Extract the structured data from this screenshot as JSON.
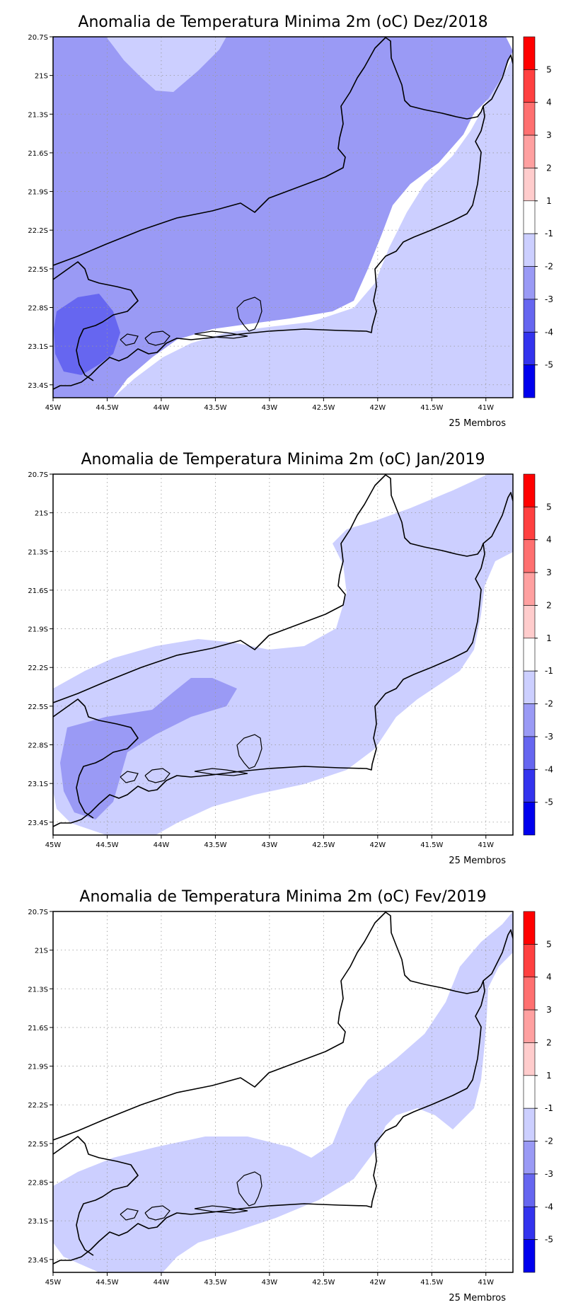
{
  "panels": [
    {
      "title": "Anomalia de Temperatura Minima 2m (oC) Dez/2018",
      "footer": "25 Membros",
      "field_level": "dez"
    },
    {
      "title": "Anomalia de Temperatura Minima 2m (oC) Jan/2019",
      "footer": "25 Membros",
      "field_level": "jan"
    },
    {
      "title": "Anomalia de Temperatura Minima 2m (oC) Fev/2019",
      "footer": "25 Membros",
      "field_level": "fev"
    }
  ],
  "map": {
    "lon_range": [
      -45.0,
      -40.75
    ],
    "lat_range": [
      -23.5,
      -20.7
    ],
    "lat_ticks": [
      "20.7S",
      "21S",
      "21.3S",
      "21.6S",
      "21.9S",
      "22.2S",
      "22.5S",
      "22.8S",
      "23.1S",
      "23.4S"
    ],
    "lat_values": [
      -20.7,
      -21.0,
      -21.3,
      -21.6,
      -21.9,
      -22.2,
      -22.5,
      -22.8,
      -23.1,
      -23.4
    ],
    "lon_ticks": [
      "45W",
      "44.5W",
      "44W",
      "43.5W",
      "43W",
      "42.5W",
      "42W",
      "41.5W",
      "41W"
    ],
    "lon_values": [
      -45.0,
      -44.5,
      -44.0,
      -43.5,
      -43.0,
      -42.5,
      -42.0,
      -41.5,
      -41.0
    ]
  },
  "colorbar": {
    "labels": [
      "5",
      "4",
      "3",
      "2",
      "1",
      "-1",
      "-2",
      "-3",
      "-4",
      "-5"
    ],
    "colors": [
      "#ff0000",
      "#ff4040",
      "#ff7070",
      "#ffa0a0",
      "#ffcccc",
      "#ffffff",
      "#cccfff",
      "#9a9af5",
      "#6666f0",
      "#3333ee",
      "#0000ee"
    ]
  },
  "fill_colors": {
    "light": "#cccfff",
    "medium": "#9a9af5",
    "dark": "#6666f0"
  }
}
